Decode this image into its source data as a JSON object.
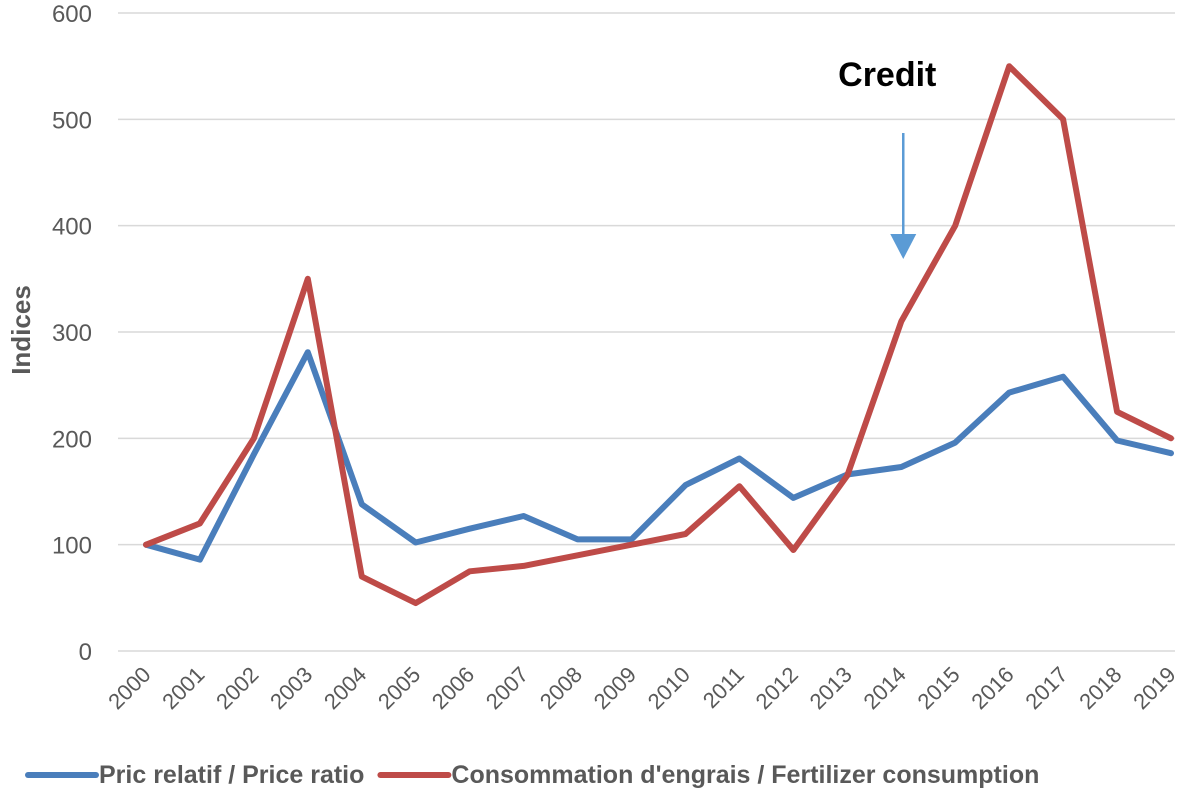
{
  "chart_data": {
    "type": "line",
    "title": "",
    "xlabel": "",
    "ylabel": "Indices",
    "ylim": [
      0,
      600
    ],
    "yticks": [
      0,
      100,
      200,
      300,
      400,
      500,
      600
    ],
    "grid": true,
    "legend_position": "bottom",
    "categories": [
      "2000",
      "2001",
      "2002",
      "2003",
      "2004",
      "2005",
      "2006",
      "2007",
      "2008",
      "2009",
      "2010",
      "2011",
      "2012",
      "2013",
      "2014",
      "2015",
      "2016",
      "2017",
      "2018",
      "2019"
    ],
    "series": [
      {
        "name": "Pric relatif / Price ratio",
        "color": "#4a7ebb",
        "values": [
          100,
          86,
          185,
          281,
          138,
          102,
          115,
          127,
          105,
          105,
          156,
          181,
          144,
          166,
          173,
          196,
          243,
          258,
          198,
          186
        ]
      },
      {
        "name": "Consommation d'engrais / Fertilizer consumption",
        "color": "#be4b48",
        "values": [
          100,
          120,
          200,
          350,
          70,
          45,
          75,
          80,
          90,
          100,
          110,
          155,
          95,
          165,
          310,
          400,
          550,
          500,
          225,
          200
        ]
      }
    ],
    "annotations": [
      {
        "text": "Credit",
        "target_category": "2014",
        "arrow_color": "#5b9bd5"
      }
    ]
  }
}
